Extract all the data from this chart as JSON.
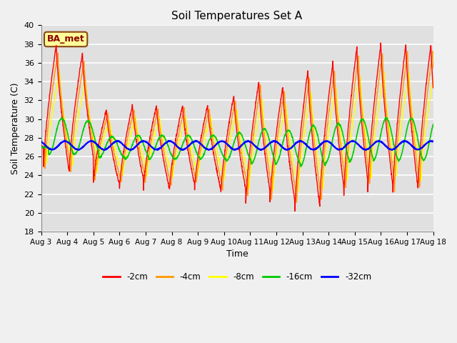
{
  "title": "Soil Temperatures Set A",
  "xlabel": "Time",
  "ylabel": "Soil Temperature (C)",
  "ylim": [
    18,
    40
  ],
  "xlim": [
    0,
    360
  ],
  "annotation": "BA_met",
  "legend_labels": [
    "-2cm",
    "-4cm",
    "-8cm",
    "-16cm",
    "-32cm"
  ],
  "legend_colors": [
    "#ff0000",
    "#ff9900",
    "#ffff00",
    "#00cc00",
    "#0000ff"
  ],
  "plot_bg": "#e0e0e0",
  "fig_bg": "#f0f0f0",
  "grid_color": "#ffffff",
  "tick_labels": [
    "Aug 3",
    "Aug 4",
    "Aug 5",
    "Aug 6",
    "Aug 7",
    "Aug 8",
    "Aug 9",
    "Aug 10",
    "Aug 11",
    "Aug 12",
    "Aug 13",
    "Aug 14",
    "Aug 15",
    "Aug 16",
    "Aug 17",
    "Aug 18"
  ],
  "tick_positions": [
    0,
    24,
    48,
    72,
    96,
    120,
    144,
    168,
    192,
    216,
    240,
    264,
    288,
    312,
    336,
    360
  ],
  "peak_hours": [
    14,
    38,
    60,
    84,
    106,
    130,
    153,
    177,
    200,
    222,
    245,
    268,
    290,
    312,
    335,
    358
  ],
  "peak_vals_2cm": [
    38.0,
    37.0,
    31.0,
    31.5,
    31.5,
    31.5,
    31.5,
    32.5,
    34.0,
    33.5,
    35.2,
    36.0,
    37.7,
    38.0,
    38.0,
    38.0
  ],
  "trough_vals_2cm": [
    24.2,
    24.5,
    23.0,
    22.5,
    22.5,
    22.5,
    22.5,
    21.8,
    20.8,
    20.5,
    19.8,
    21.0,
    21.5,
    22.0,
    21.8,
    22.0
  ],
  "base_temp": 27.0,
  "lw_thin": 1.0,
  "lw_bold": 1.5,
  "figsize": [
    6.4,
    4.8
  ],
  "dpi": 100
}
